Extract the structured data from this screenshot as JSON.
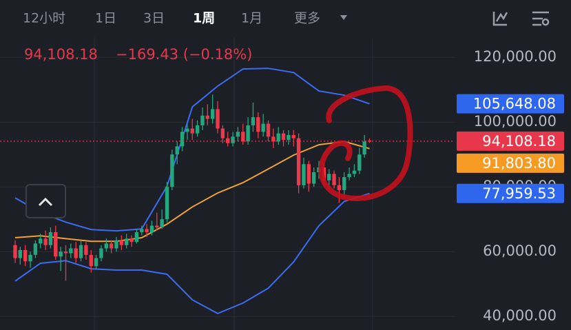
{
  "chart_data": {
    "type": "candlestick",
    "tabs": [
      "12小时",
      "1日",
      "3日",
      "1周",
      "1月",
      "更多"
    ],
    "selected_tab": 3,
    "price_text": "94,108.18",
    "change_text": "−169.43 (−0.18%)",
    "up_color": "#22a77e",
    "down_color": "#ec3a4b",
    "ylim": [
      36000,
      126000
    ],
    "yticks": [
      {
        "value": 120000,
        "label": "120,000.00"
      },
      {
        "value": 100000,
        "label": "100,000.00"
      },
      {
        "value": 80000,
        "label": "80,000.00"
      },
      {
        "value": 60000,
        "label": "60,000.00"
      },
      {
        "value": 40000,
        "label": "40,000.00"
      }
    ],
    "grid": true,
    "candles": [
      [
        62000,
        63500,
        56500,
        58000
      ],
      [
        58000,
        61500,
        56000,
        60500
      ],
      [
        60500,
        62000,
        55500,
        57000
      ],
      [
        57000,
        60000,
        55000,
        59000
      ],
      [
        59000,
        63500,
        58000,
        62500
      ],
      [
        62500,
        65500,
        61000,
        64000
      ],
      [
        64000,
        66500,
        60500,
        62000
      ],
      [
        62000,
        67500,
        61000,
        66000
      ],
      [
        66000,
        68000,
        57500,
        58500
      ],
      [
        58500,
        61500,
        54000,
        60000
      ],
      [
        60000,
        62000,
        51000,
        59500
      ],
      [
        59500,
        62500,
        58000,
        61000
      ],
      [
        61000,
        63000,
        56500,
        58000
      ],
      [
        58000,
        63500,
        57000,
        62000
      ],
      [
        62000,
        63000,
        57500,
        59000
      ],
      [
        59000,
        60500,
        53500,
        55500
      ],
      [
        55500,
        59000,
        54500,
        58000
      ],
      [
        58000,
        62000,
        57000,
        61000
      ],
      [
        61000,
        64000,
        60000,
        62500
      ],
      [
        62500,
        63500,
        59500,
        61000
      ],
      [
        61000,
        64500,
        60000,
        63500
      ],
      [
        63500,
        65000,
        60500,
        62000
      ],
      [
        62000,
        65500,
        61000,
        64000
      ],
      [
        64000,
        65000,
        61500,
        63000
      ],
      [
        63000,
        67000,
        62500,
        66000
      ],
      [
        66000,
        68000,
        65000,
        67000
      ],
      [
        67000,
        68500,
        64500,
        66000
      ],
      [
        66000,
        69500,
        65000,
        68000
      ],
      [
        68000,
        72000,
        66500,
        67500
      ],
      [
        67500,
        73000,
        67000,
        70000
      ],
      [
        70000,
        81500,
        69000,
        80000
      ],
      [
        80000,
        91500,
        79000,
        90000
      ],
      [
        90000,
        94000,
        87000,
        92500
      ],
      [
        92500,
        98500,
        91000,
        97000
      ],
      [
        97000,
        99500,
        94500,
        98000
      ],
      [
        98000,
        101000,
        94500,
        96500
      ],
      [
        96500,
        100500,
        95500,
        99000
      ],
      [
        99000,
        104500,
        97500,
        102000
      ],
      [
        102000,
        105500,
        99000,
        101000
      ],
      [
        101000,
        108500,
        99500,
        104000
      ],
      [
        104000,
        106500,
        96500,
        98000
      ],
      [
        98000,
        99000,
        93500,
        95000
      ],
      [
        95000,
        97000,
        92500,
        93500
      ],
      [
        93500,
        97000,
        92500,
        95500
      ],
      [
        95500,
        98500,
        94000,
        97000
      ],
      [
        97000,
        99500,
        93000,
        94000
      ],
      [
        94000,
        101500,
        93000,
        99000
      ],
      [
        99000,
        106000,
        97000,
        101500
      ],
      [
        101500,
        103000,
        95000,
        97000
      ],
      [
        97000,
        102500,
        95500,
        99500
      ],
      [
        99500,
        100500,
        94000,
        95500
      ],
      [
        95500,
        98000,
        92000,
        94000
      ],
      [
        94000,
        98500,
        93000,
        96500
      ],
      [
        96500,
        97500,
        92500,
        94500
      ],
      [
        94500,
        97500,
        93000,
        96000
      ],
      [
        96000,
        97500,
        92500,
        95000
      ],
      [
        95000,
        96500,
        78000,
        80500
      ],
      [
        80500,
        89000,
        79500,
        87000
      ],
      [
        87000,
        88000,
        78500,
        81000
      ],
      [
        81000,
        86000,
        80000,
        84500
      ],
      [
        84500,
        88000,
        82500,
        86000
      ],
      [
        86000,
        87000,
        80500,
        82000
      ],
      [
        82000,
        85500,
        79000,
        84000
      ],
      [
        84000,
        85000,
        79500,
        80500
      ],
      [
        80500,
        83000,
        75000,
        79000
      ],
      [
        79000,
        84500,
        77000,
        83000
      ],
      [
        83000,
        86000,
        82000,
        84000
      ],
      [
        84000,
        87000,
        83000,
        85000
      ],
      [
        85000,
        92000,
        84000,
        90000
      ],
      [
        90000,
        96000,
        89000,
        94000
      ],
      [
        94277.61,
        95000,
        93500,
        94108.18
      ]
    ],
    "band_x": [
      0,
      5,
      10,
      15,
      20,
      25,
      30,
      35,
      40,
      45,
      50,
      55,
      60,
      65,
      70
    ],
    "bands": [
      {
        "color": "#3b6cf2",
        "values": [
          76600,
          72100,
          69100,
          66800,
          66400,
          67000,
          80200,
          104700,
          111100,
          116400,
          116600,
          115300,
          109600,
          108300,
          105648.08
        ]
      },
      {
        "color": "#f0a332",
        "values": [
          64300,
          64900,
          64000,
          63200,
          63200,
          64300,
          68500,
          73800,
          78100,
          81300,
          85500,
          89800,
          93000,
          94000,
          91803.8
        ]
      },
      {
        "color": "#3b6cf2",
        "values": [
          50900,
          56400,
          57200,
          54700,
          54300,
          54300,
          53000,
          45100,
          40900,
          44100,
          48700,
          56800,
          68000,
          75500,
          77959.53
        ]
      }
    ],
    "price_tags": [
      {
        "value": 105648.08,
        "label": "105,648.08",
        "color": "#2f66ee"
      },
      {
        "value": 94108.18,
        "label": "94,108.18",
        "color": "#e8374a"
      },
      {
        "value": 91803.8,
        "label": "91,803.80",
        "color": "#f59a23"
      },
      {
        "value": 77959.53,
        "label": "77,959.53",
        "color": "#2f66ee"
      }
    ]
  }
}
